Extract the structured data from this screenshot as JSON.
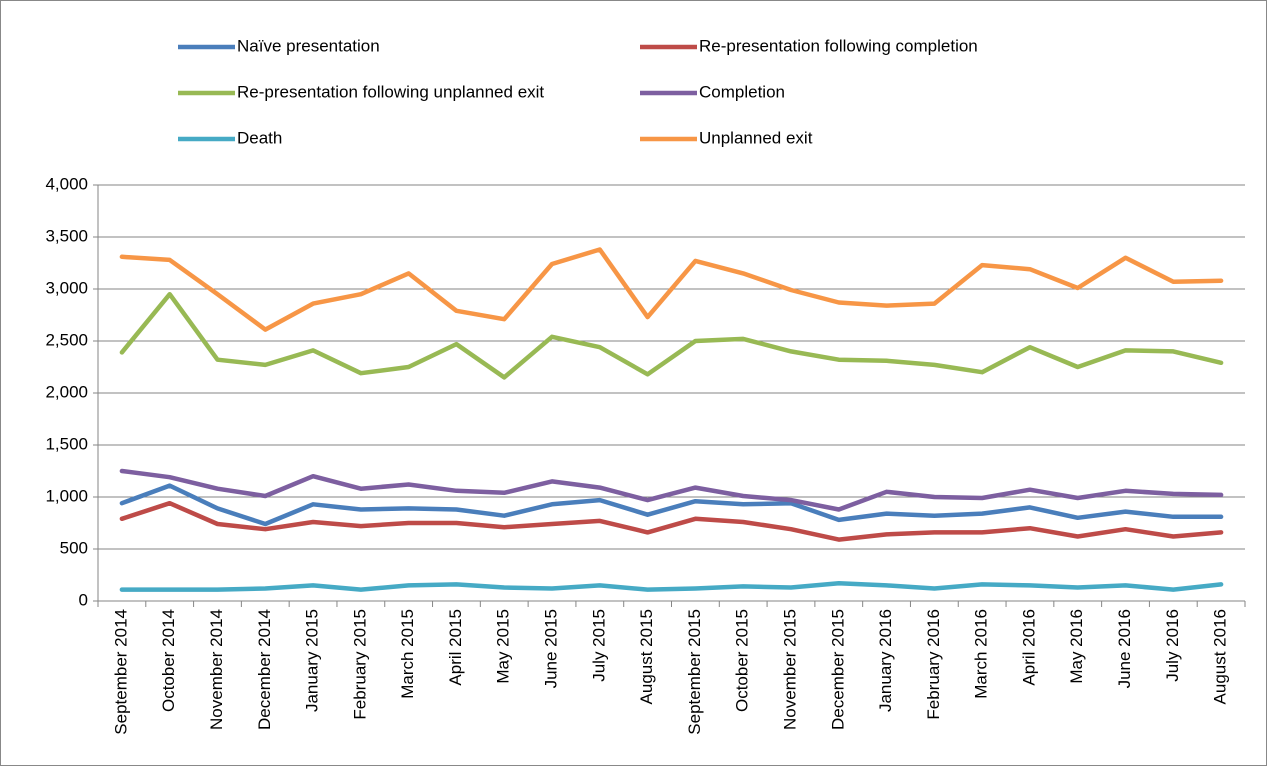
{
  "chart_data": {
    "type": "line",
    "categories": [
      "September 2014",
      "October 2014",
      "November 2014",
      "December 2014",
      "January 2015",
      "February 2015",
      "March 2015",
      "April 2015",
      "May 2015",
      "June 2015",
      "July 2015",
      "August 2015",
      "September 2015",
      "October 2015",
      "November 2015",
      "December 2015",
      "January 2016",
      "February 2016",
      "March 2016",
      "April 2016",
      "May 2016",
      "June 2016",
      "July 2016",
      "August 2016"
    ],
    "series": [
      {
        "name": "Naïve presentation",
        "color": "#4a7ebb",
        "values": [
          940,
          1110,
          890,
          740,
          930,
          880,
          890,
          880,
          820,
          930,
          970,
          830,
          960,
          930,
          940,
          780,
          840,
          820,
          840,
          900,
          800,
          860,
          810,
          810
        ]
      },
      {
        "name": "Re-presentation following completion",
        "color": "#be4b48",
        "values": [
          790,
          940,
          740,
          690,
          760,
          720,
          750,
          750,
          710,
          740,
          770,
          660,
          790,
          760,
          690,
          590,
          640,
          660,
          660,
          700,
          620,
          690,
          620,
          660
        ]
      },
      {
        "name": "Re-presentation following unplanned exit",
        "color": "#98b954",
        "values": [
          2390,
          2950,
          2320,
          2270,
          2410,
          2190,
          2250,
          2470,
          2150,
          2540,
          2440,
          2180,
          2500,
          2520,
          2400,
          2320,
          2310,
          2270,
          2200,
          2440,
          2250,
          2410,
          2400,
          2290
        ]
      },
      {
        "name": "Completion",
        "color": "#7d5fa0",
        "values": [
          1250,
          1190,
          1080,
          1010,
          1200,
          1080,
          1120,
          1060,
          1040,
          1150,
          1090,
          970,
          1090,
          1010,
          970,
          880,
          1050,
          1000,
          990,
          1070,
          990,
          1060,
          1030,
          1020
        ]
      },
      {
        "name": "Death",
        "color": "#46aac5",
        "values": [
          110,
          110,
          110,
          120,
          150,
          110,
          150,
          160,
          130,
          120,
          150,
          110,
          120,
          140,
          130,
          170,
          150,
          120,
          160,
          150,
          130,
          150,
          110,
          160
        ]
      },
      {
        "name": "Unplanned exit",
        "color": "#f79646",
        "values": [
          3310,
          3280,
          2950,
          2610,
          2860,
          2950,
          3150,
          2790,
          2710,
          3240,
          3380,
          2730,
          3270,
          3150,
          2990,
          2870,
          2840,
          2860,
          3230,
          3190,
          3010,
          3300,
          3070,
          3080
        ]
      }
    ],
    "ylim": [
      0,
      4000
    ],
    "yticks": [
      0,
      500,
      {
        "value": 1000,
        "label": "1,000"
      },
      {
        "value": 1500,
        "label": "1,500"
      },
      {
        "value": 2000,
        "label": "2,000"
      },
      {
        "value": 2500,
        "label": "2,500"
      },
      {
        "value": 3000,
        "label": "3,000"
      },
      {
        "value": 3500,
        "label": "3,500"
      },
      {
        "value": 4000,
        "label": "4,000"
      }
    ],
    "grid": true,
    "legend": "top"
  }
}
